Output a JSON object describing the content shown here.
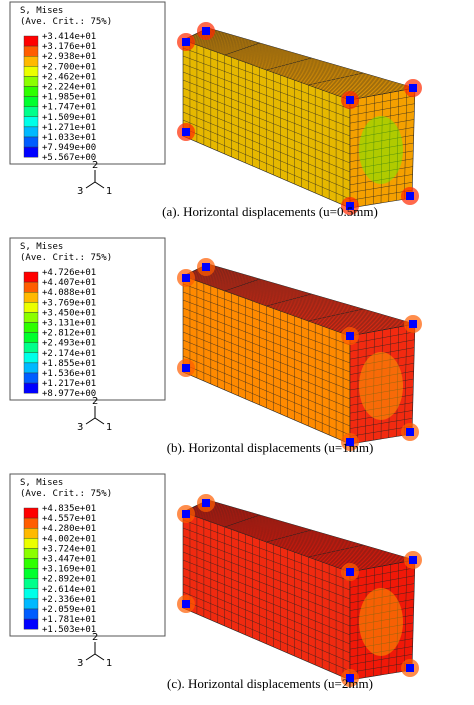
{
  "colormap": [
    "#ff0000",
    "#ff5d00",
    "#ffb900",
    "#ebff00",
    "#8bff00",
    "#2eff00",
    "#00ff2e",
    "#00ff8b",
    "#00ffe8",
    "#00b9ff",
    "#005dff",
    "#0000ff"
  ],
  "panels": [
    {
      "legend": {
        "title": "S, Mises",
        "subtitle": "(Ave. Crit.: 75%)",
        "values": [
          "+3.414e+01",
          "+3.176e+01",
          "+2.938e+01",
          "+2.700e+01",
          "+2.462e+01",
          "+2.224e+01",
          "+1.985e+01",
          "+1.747e+01",
          "+1.509e+01",
          "+1.271e+01",
          "+1.033e+01",
          "+7.949e+00",
          "+5.567e+00"
        ]
      },
      "triad": {
        "up": "2",
        "left": "3",
        "right": "1"
      },
      "caption": "(a). Horizontal displacements (u=0.5mm)"
    },
    {
      "legend": {
        "title": "S, Mises",
        "subtitle": "(Ave. Crit.: 75%)",
        "values": [
          "+4.726e+01",
          "+4.407e+01",
          "+4.088e+01",
          "+3.769e+01",
          "+3.450e+01",
          "+3.131e+01",
          "+2.812e+01",
          "+2.493e+01",
          "+2.174e+01",
          "+1.855e+01",
          "+1.536e+01",
          "+1.217e+01",
          "+8.977e+00"
        ]
      },
      "triad": {
        "up": "2",
        "left": "3",
        "right": "1"
      },
      "caption": "(b). Horizontal displacements (u=1mm)"
    },
    {
      "legend": {
        "title": "S, Mises",
        "subtitle": "(Ave. Crit.: 75%)",
        "values": [
          "+4.835e+01",
          "+4.557e+01",
          "+4.280e+01",
          "+4.002e+01",
          "+3.724e+01",
          "+3.447e+01",
          "+3.169e+01",
          "+2.892e+01",
          "+2.614e+01",
          "+2.336e+01",
          "+2.059e+01",
          "+1.781e+01",
          "+1.503e+01"
        ]
      },
      "triad": {
        "up": "2",
        "left": "3",
        "right": "1"
      },
      "caption": "(c). Horizontal displacements (u=2mm)"
    }
  ]
}
